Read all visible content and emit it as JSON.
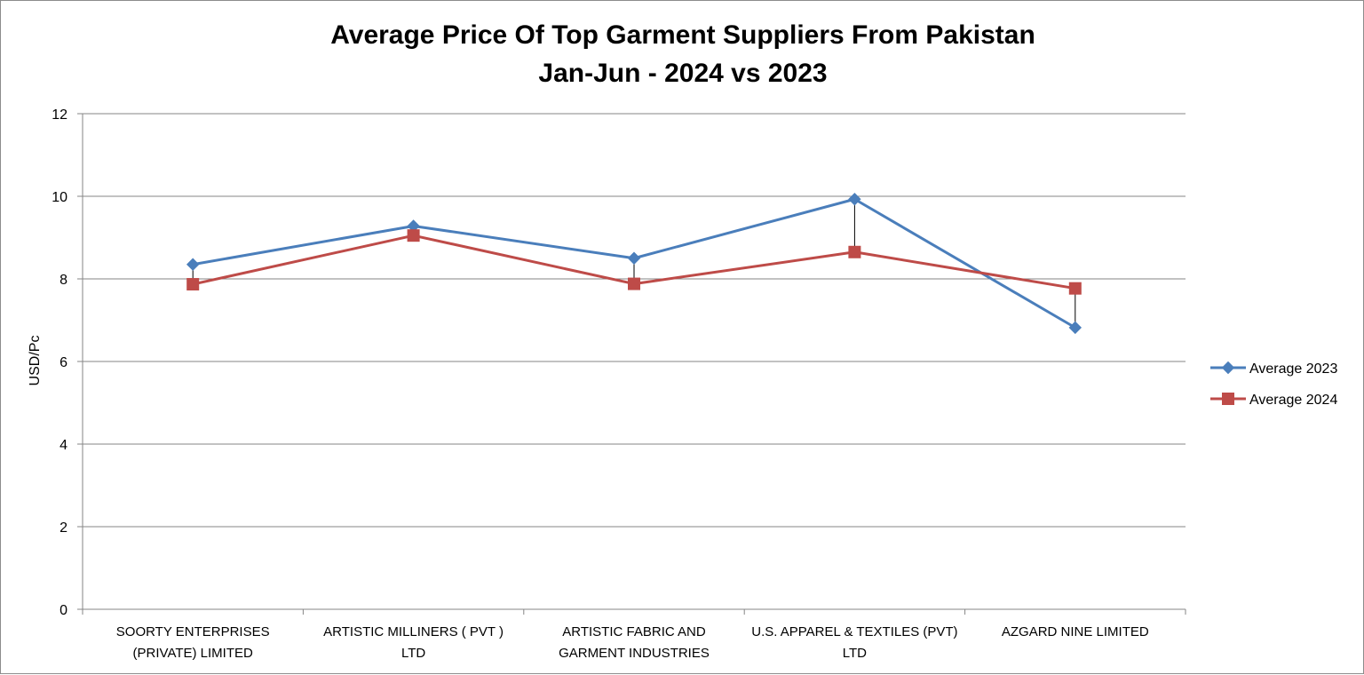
{
  "chart_data": {
    "type": "line",
    "title": "Average Price Of Top Garment Suppliers From Pakistan",
    "subtitle": "Jan-Jun - 2024 vs 2023",
    "xlabel": "",
    "ylabel": "USD/Pc",
    "ylim": [
      0,
      12
    ],
    "yticks": [
      "0",
      "2",
      "4",
      "6",
      "8",
      "10",
      "12"
    ],
    "grid": true,
    "legend_position": "right",
    "categories": [
      [
        "SOORTY ENTERPRISES",
        "(PRIVATE) LIMITED"
      ],
      [
        "ARTISTIC MILLINERS ( PVT )",
        "LTD"
      ],
      [
        "ARTISTIC FABRIC AND",
        "GARMENT INDUSTRIES"
      ],
      [
        "U.S. APPAREL & TEXTILES (PVT)",
        "LTD"
      ],
      [
        "AZGARD NINE LIMITED"
      ]
    ],
    "series": [
      {
        "name": "Average 2023",
        "color": "#4a7ebb",
        "marker": "diamond",
        "values": [
          8.35,
          9.28,
          8.5,
          9.93,
          6.82
        ]
      },
      {
        "name": "Average 2024",
        "color": "#be4b48",
        "marker": "square",
        "values": [
          7.87,
          9.05,
          7.88,
          8.65,
          7.77
        ]
      }
    ],
    "drop_lines": true
  }
}
